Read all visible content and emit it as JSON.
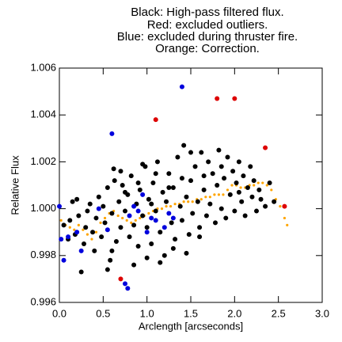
{
  "chart_data": {
    "type": "scatter",
    "title_lines": [
      "Black: High-pass filtered flux.",
      "Red: excluded outliers.",
      "Blue: excluded during thruster fire.",
      "Orange: Correction."
    ],
    "xlabel": "Arclength [arcseconds]",
    "ylabel": "Relative Flux",
    "xlim": [
      0,
      3
    ],
    "ylim": [
      0.996,
      1.006
    ],
    "xticks": [
      {
        "value": 0,
        "label": "0.0"
      },
      0.5,
      {
        "value": 1,
        "label": "1.0"
      },
      1.5,
      {
        "value": 2,
        "label": "2.0"
      },
      2.5,
      {
        "value": 3,
        "label": "3.0"
      }
    ],
    "yticks": [
      0.996,
      0.998,
      {
        "value": 1,
        "label": "1.000"
      },
      1.002,
      1.004,
      1.006
    ],
    "series": [
      {
        "color": "#ffa500",
        "size": 1.6,
        "x": [
          0.02,
          0.07,
          0.12,
          0.17,
          0.22,
          0.27,
          0.32,
          0.37,
          0.42,
          0.47,
          0.52,
          0.57,
          0.62,
          0.67,
          0.72,
          0.77,
          0.82,
          0.87,
          0.92,
          0.97,
          1.02,
          1.07,
          1.12,
          1.17,
          1.22,
          1.27,
          1.32,
          1.37,
          1.42,
          1.47,
          1.52,
          1.57,
          1.62,
          1.67,
          1.72,
          1.77,
          1.82,
          1.87,
          1.92,
          1.97,
          2.02,
          2.07,
          2.12,
          2.17,
          2.22,
          2.27,
          2.32,
          2.37,
          2.42,
          2.47,
          2.52,
          2.57,
          2.6
        ],
        "values": [
          0.9995,
          0.9993,
          0.9992,
          0.9991,
          0.9993,
          0.9991,
          0.9989,
          0.9987,
          0.999,
          0.9994,
          0.9996,
          0.9998,
          0.9999,
          0.9997,
          0.9996,
          0.9995,
          0.9994,
          0.9995,
          0.9996,
          0.9997,
          0.9998,
          0.9999,
          1.0,
          1.0,
          1.0001,
          1.0001,
          1.0002,
          1.0002,
          1.0003,
          1.0003,
          1.0003,
          1.0004,
          1.0004,
          1.0005,
          1.0005,
          1.0006,
          1.0006,
          1.0006,
          1.0008,
          1.001,
          1.001,
          1.0009,
          1.0009,
          1.001,
          1.001,
          1.0011,
          1.0011,
          1.001,
          1.0008,
          1.0004,
          1.0001,
          0.9996,
          0.9993
        ]
      },
      {
        "color": "#000000",
        "size": 3,
        "x": [
          0.05,
          0.1,
          0.12,
          0.15,
          0.18,
          0.2,
          0.22,
          0.25,
          0.28,
          0.3,
          0.32,
          0.35,
          0.38,
          0.4,
          0.42,
          0.45,
          0.48,
          0.5,
          0.52,
          0.55,
          0.58,
          0.6,
          0.62,
          0.63,
          0.65,
          0.68,
          0.7,
          0.72,
          0.75,
          0.78,
          0.8,
          0.82,
          0.85,
          0.88,
          0.9,
          0.92,
          0.95,
          0.98,
          1.0,
          1.02,
          1.05,
          1.07,
          1.1,
          1.12,
          1.15,
          1.18,
          1.2,
          1.22,
          1.25,
          1.28,
          1.3,
          1.32,
          1.35,
          1.38,
          1.4,
          1.42,
          1.45,
          1.48,
          1.5,
          1.52,
          1.55,
          1.58,
          1.6,
          1.62,
          1.65,
          1.68,
          1.7,
          1.72,
          1.75,
          1.78,
          1.8,
          1.82,
          1.85,
          1.88,
          1.9,
          1.92,
          1.95,
          1.98,
          2.0,
          2.02,
          2.05,
          2.08,
          2.1,
          2.12,
          2.15,
          2.18,
          2.2,
          2.22,
          2.25,
          2.28,
          2.3,
          2.35,
          2.4,
          2.45,
          0.55,
          0.85,
          1.15,
          0.6,
          1.0,
          1.3,
          1.6,
          1.45,
          0.95,
          1.1,
          1.25,
          0.75,
          0.7,
          1.5,
          1.65,
          2.05,
          1.85,
          0.9,
          1.05,
          1.4
        ],
        "values": [
          0.9993,
          0.9987,
          0.9995,
          1.0003,
          0.9989,
          1.0004,
          0.9997,
          0.9973,
          0.9985,
          0.9992,
          0.9999,
          1.0002,
          0.999,
          0.9982,
          0.9996,
          1.0005,
          0.9988,
          1.0001,
          0.9994,
          1.0009,
          0.9978,
          0.9998,
          1.0017,
          1.0012,
          0.9986,
          1.0003,
          0.9992,
          1.001,
          0.9999,
          1.0006,
          0.9988,
          1.0014,
          0.9993,
          1.0002,
          0.9984,
          1.0008,
          0.9997,
          1.0018,
          0.9992,
          1.0004,
          0.9985,
          1.0011,
          0.9999,
          1.002,
          0.999,
          1.0007,
          0.998,
          1.0003,
          1.0015,
          0.9994,
          1.0009,
          0.9987,
          1.0022,
          1.0001,
          0.9995,
          1.0027,
          1.0005,
          0.9989,
          1.0012,
          0.9998,
          1.0018,
          1.0003,
          0.9992,
          1.0024,
          1.0008,
          0.9997,
          1.002,
          1.0002,
          1.0015,
          0.9994,
          1.001,
          1.0025,
          1.0,
          1.0013,
          0.9996,
          1.0022,
          1.0006,
          1.0016,
          0.9999,
          1.0011,
          1.002,
          1.0003,
          1.0014,
          0.9997,
          1.0009,
          1.0018,
          1.0005,
          1.0012,
          0.9999,
          1.0008,
          1.0004,
          1.0001,
          1.0011,
          1.0003,
          0.9974,
          0.9976,
          0.9977,
          0.9982,
          0.9979,
          0.9983,
          0.9988,
          0.9981,
          1.0019,
          1.0015,
          1.0009,
          1.0007,
          1.0016,
          1.0024,
          1.0014,
          1.0007,
          1.0018,
          1.0011,
          1.0002,
          1.0013
        ]
      },
      {
        "color": "#0000dd",
        "size": 3,
        "x": [
          0.0,
          0.02,
          0.05,
          0.1,
          0.2,
          0.25,
          0.6,
          0.8,
          0.85,
          0.9,
          0.95,
          1.0,
          1.05,
          1.1,
          1.2,
          1.25,
          1.4,
          0.55,
          0.75,
          0.78,
          1.3,
          0.45
        ],
        "values": [
          1.0001,
          0.9987,
          0.9978,
          0.9988,
          0.999,
          0.9982,
          1.0032,
          0.9997,
          1.0001,
          0.9999,
          1.0006,
          0.999,
          0.9996,
          0.9995,
          0.9992,
          0.9998,
          1.0052,
          0.9991,
          0.9968,
          0.9966,
          0.9996,
          1.0
        ]
      },
      {
        "color": "#dd0000",
        "size": 3,
        "x": [
          0.7,
          1.1,
          1.8,
          2.0,
          2.35,
          2.57
        ],
        "values": [
          0.997,
          1.0038,
          1.0047,
          1.0047,
          1.0026,
          1.0001
        ]
      }
    ]
  }
}
